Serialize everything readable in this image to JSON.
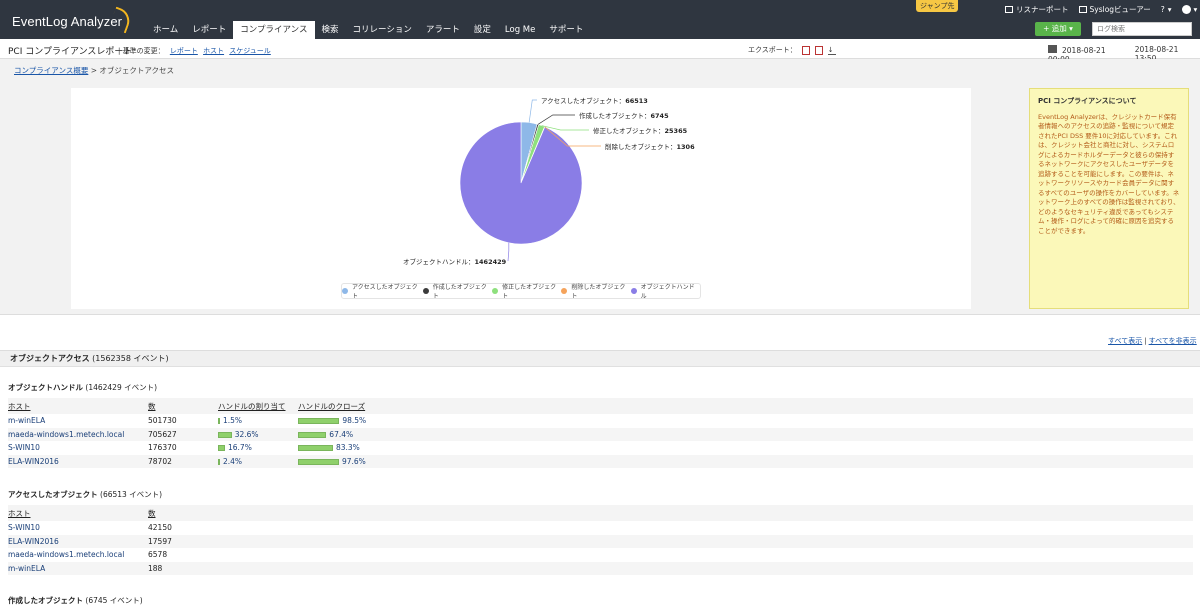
{
  "app": {
    "logo": "EventLog Analyzer",
    "jump_label": "ジャンプ先"
  },
  "nav": {
    "tabs": [
      {
        "label": "ホーム"
      },
      {
        "label": "レポート"
      },
      {
        "label": "コンプライアンス"
      },
      {
        "label": "検索"
      },
      {
        "label": "コリレーション"
      },
      {
        "label": "アラート"
      },
      {
        "label": "設定"
      },
      {
        "label": "Log Me"
      },
      {
        "label": "サポート"
      }
    ],
    "active": 2
  },
  "top_right": {
    "listener": "リスナーポート",
    "syslog": "Syslogビューアー",
    "help": "?",
    "add_label": "+ 追加",
    "search_placeholder": "ログ検索"
  },
  "report": {
    "title": "PCI コンプライアンスレポート",
    "change_label": "基準の変更：",
    "links": [
      "レポート",
      "ホスト",
      "スケジュール"
    ],
    "export_label": "エクスポート：",
    "date_from": "2018-08-21 00:00",
    "date_to": "2018-08-21 13:50"
  },
  "breadcrumb": {
    "parent": "コンプライアンス概要",
    "current": "オブジェクトアクセス"
  },
  "chart_data": {
    "type": "pie",
    "slices": [
      {
        "label": "アクセスしたオブジェクト",
        "value": 66513,
        "color": "#8eb8e8"
      },
      {
        "label": "作成したオブジェクト",
        "value": 6745,
        "color": "#3b3b3b"
      },
      {
        "label": "修正したオブジェクト",
        "value": 25365,
        "color": "#8ee07d"
      },
      {
        "label": "削除したオブジェクト",
        "value": 1306,
        "color": "#f5a35b"
      },
      {
        "label": "オブジェクトハンドル",
        "value": 1462429,
        "color": "#8a7de6"
      }
    ],
    "legend_position": "bottom"
  },
  "info": {
    "title": "PCI コンプライアンスについて",
    "body": "EventLog Analyzerは、クレジットカード保有者情報へのアクセスの追跡・監視について規定されたPCI DSS 要件10に対応しています。これは、クレジット会社と商社に対し、システムログによるカードホルダーデータと彼らの保持するネットワークにアクセスしたユーザデータを追跡することを可能にします。この要件は、ネットワークリソースやカード会員データに関するすべてのユーザの操作をカバーしています。ネットワーク上のすべての操作は監視されており、どのようなセキュリティ違反であってもシステム・操作・ログによって的確に原因を追究することができます。"
  },
  "show_all": {
    "show": "すべて表示",
    "hide": "すべてを非表示"
  },
  "section": {
    "title": "オブジェクトアクセス",
    "count": "(1562358 イベント)"
  },
  "handles": {
    "title": "オブジェクトハンドル",
    "count": "(1462429 イベント)",
    "headers": [
      "ホスト",
      "数",
      "ハンドルの割り当て",
      "ハンドルのクローズ"
    ],
    "rows": [
      {
        "host": "m-winELA",
        "count": "501730",
        "alloc": 1.5,
        "alloc_label": "1.5%",
        "close": 98.5,
        "close_label": "98.5%"
      },
      {
        "host": "maeda-windows1.metech.local",
        "count": "705627",
        "alloc": 32.6,
        "alloc_label": "32.6%",
        "close": 67.4,
        "close_label": "67.4%"
      },
      {
        "host": "S-WIN10",
        "count": "176370",
        "alloc": 16.7,
        "alloc_label": "16.7%",
        "close": 83.3,
        "close_label": "83.3%"
      },
      {
        "host": "ELA-WIN2016",
        "count": "78702",
        "alloc": 2.4,
        "alloc_label": "2.4%",
        "close": 97.6,
        "close_label": "97.6%"
      }
    ]
  },
  "accessed": {
    "title": "アクセスしたオブジェクト",
    "count": "(66513 イベント)",
    "headers": [
      "ホスト",
      "数"
    ],
    "rows": [
      {
        "host": "S-WIN10",
        "count": "42150"
      },
      {
        "host": "ELA-WIN2016",
        "count": "17597"
      },
      {
        "host": "maeda-windows1.metech.local",
        "count": "6578"
      },
      {
        "host": "m-winELA",
        "count": "188"
      }
    ]
  },
  "created": {
    "title": "作成したオブジェクト",
    "count": "(6745 イベント)"
  }
}
